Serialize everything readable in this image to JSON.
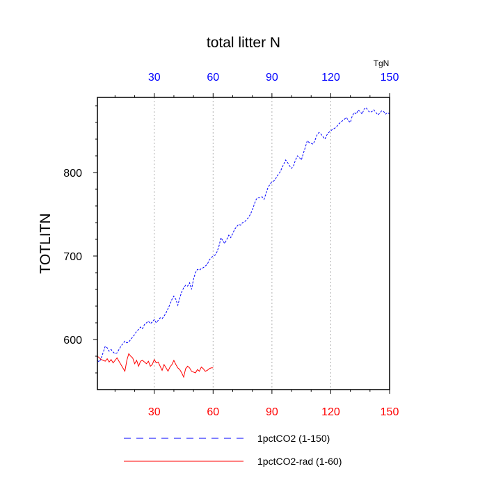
{
  "chart_data": {
    "type": "line",
    "title": "total litter N",
    "ylabel": "TOTLITN",
    "units": "TgN",
    "x_ticks": [
      30,
      60,
      90,
      120,
      150
    ],
    "y_ticks": [
      600,
      700,
      800
    ],
    "xlim": [
      1,
      150
    ],
    "ylim": [
      540,
      890
    ],
    "grid": "vertical dashed at x ticks",
    "top_axis_color": "#0000ff",
    "bottom_axis_color": "#ff0000",
    "legend_position": "bottom",
    "series": [
      {
        "name": "1pctCO2 (1-150)",
        "color": "#0000ff",
        "dash": "dashed",
        "x": [
          1,
          2,
          3,
          4,
          5,
          6,
          7,
          8,
          9,
          10,
          11,
          12,
          13,
          14,
          15,
          16,
          17,
          18,
          19,
          20,
          21,
          22,
          23,
          24,
          25,
          26,
          27,
          28,
          29,
          30,
          31,
          32,
          33,
          34,
          35,
          36,
          37,
          38,
          39,
          40,
          41,
          42,
          43,
          44,
          45,
          46,
          47,
          48,
          49,
          50,
          51,
          52,
          53,
          54,
          55,
          56,
          57,
          58,
          59,
          60,
          61,
          62,
          63,
          64,
          65,
          66,
          67,
          68,
          69,
          70,
          71,
          72,
          73,
          74,
          75,
          76,
          77,
          78,
          79,
          80,
          81,
          82,
          83,
          84,
          85,
          86,
          87,
          88,
          89,
          90,
          91,
          92,
          93,
          94,
          95,
          96,
          97,
          98,
          99,
          100,
          101,
          102,
          103,
          104,
          105,
          106,
          107,
          108,
          109,
          110,
          111,
          112,
          113,
          114,
          115,
          116,
          117,
          118,
          119,
          120,
          121,
          122,
          123,
          124,
          125,
          126,
          127,
          128,
          129,
          130,
          131,
          132,
          133,
          134,
          135,
          136,
          137,
          138,
          139,
          140,
          141,
          142,
          143,
          144,
          145,
          146,
          147,
          148,
          149,
          150
        ],
        "y": [
          575,
          573,
          578,
          585,
          592,
          590,
          586,
          588,
          585,
          583,
          584,
          588,
          592,
          595,
          598,
          596,
          597,
          600,
          603,
          606,
          610,
          612,
          615,
          613,
          618,
          620,
          622,
          619,
          621,
          624,
          620,
          623,
          626,
          625,
          628,
          632,
          637,
          642,
          648,
          652,
          648,
          641,
          650,
          657,
          662,
          665,
          664,
          668,
          660,
          672,
          680,
          684,
          683,
          685,
          686,
          688,
          690,
          695,
          698,
          700,
          701,
          705,
          712,
          722,
          718,
          715,
          720,
          725,
          722,
          727,
          732,
          735,
          738,
          737,
          740,
          741,
          743,
          746,
          750,
          755,
          762,
          768,
          770,
          770,
          771,
          768,
          775,
          782,
          786,
          789,
          790,
          793,
          797,
          800,
          805,
          810,
          815,
          812,
          808,
          805,
          808,
          815,
          820,
          818,
          815,
          823,
          830,
          838,
          836,
          835,
          834,
          839,
          845,
          848,
          846,
          843,
          840,
          845,
          848,
          850,
          852,
          853,
          855,
          858,
          860,
          862,
          864,
          866,
          862,
          860,
          868,
          872,
          870,
          875,
          873,
          870,
          876,
          878,
          874,
          872,
          873,
          875,
          872,
          869,
          871,
          874,
          873,
          870,
          872,
          870
        ]
      },
      {
        "name": "1pctCO2-rad (1-60)",
        "color": "#ff0000",
        "dash": "solid",
        "x": [
          1,
          2,
          3,
          4,
          5,
          6,
          7,
          8,
          9,
          10,
          11,
          12,
          13,
          14,
          15,
          16,
          17,
          18,
          19,
          20,
          21,
          22,
          23,
          24,
          25,
          26,
          27,
          28,
          29,
          30,
          31,
          32,
          33,
          34,
          35,
          36,
          37,
          38,
          39,
          40,
          41,
          42,
          43,
          44,
          45,
          46,
          47,
          48,
          49,
          50,
          51,
          52,
          53,
          54,
          55,
          56,
          57,
          58,
          59,
          60
        ],
        "y": [
          580,
          578,
          576,
          575,
          574,
          577,
          573,
          576,
          572,
          575,
          578,
          574,
          570,
          566,
          562,
          575,
          583,
          580,
          578,
          571,
          575,
          568,
          574,
          575,
          573,
          571,
          574,
          568,
          570,
          576,
          572,
          573,
          568,
          563,
          570,
          566,
          562,
          567,
          570,
          575,
          570,
          566,
          564,
          560,
          555,
          565,
          568,
          566,
          562,
          561,
          560,
          564,
          562,
          567,
          565,
          562,
          563,
          565,
          566,
          566
        ]
      }
    ]
  }
}
